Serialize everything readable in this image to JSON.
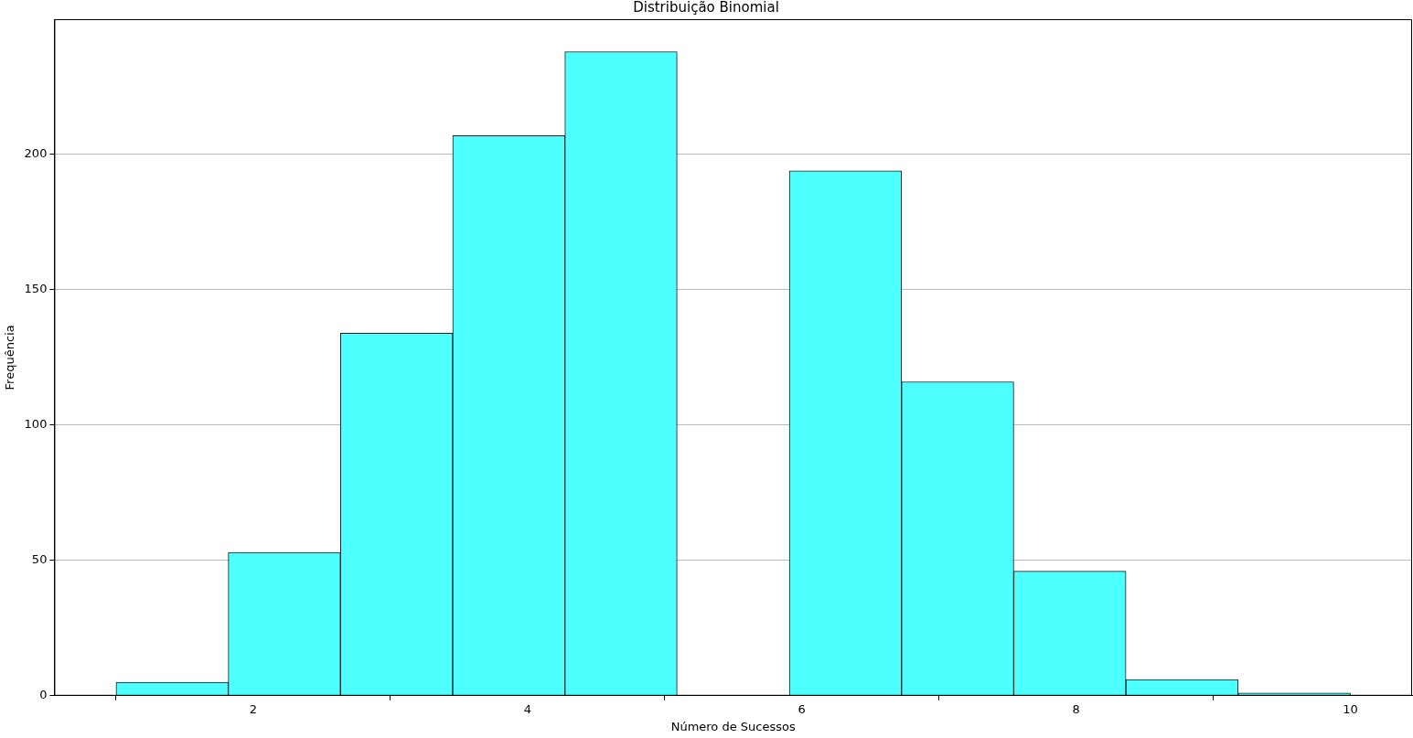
{
  "chart_data": {
    "type": "histogram",
    "title": "Distribuição Binomial",
    "xlabel": "Número de Sucessos",
    "ylabel": "Frequência",
    "bins": [
      1,
      1.8181818181818181,
      2.6363636363636362,
      3.4545454545454546,
      4.2727272727272725,
      5.090909090909091,
      5.909090909090909,
      6.7272727272727275,
      7.545454545454545,
      8.363636363636363,
      9.181818181818182,
      10
    ],
    "values": [
      5,
      53,
      134,
      207,
      238,
      0,
      194,
      116,
      46,
      6,
      1
    ],
    "color": "#4dffff",
    "xlim": [
      0.55,
      10.45
    ],
    "xticks": [
      2,
      4,
      6,
      8,
      10
    ],
    "ylim": [
      0,
      250
    ],
    "yticks": [
      0,
      50,
      100,
      150,
      200
    ],
    "grid": "y",
    "legend": false
  }
}
